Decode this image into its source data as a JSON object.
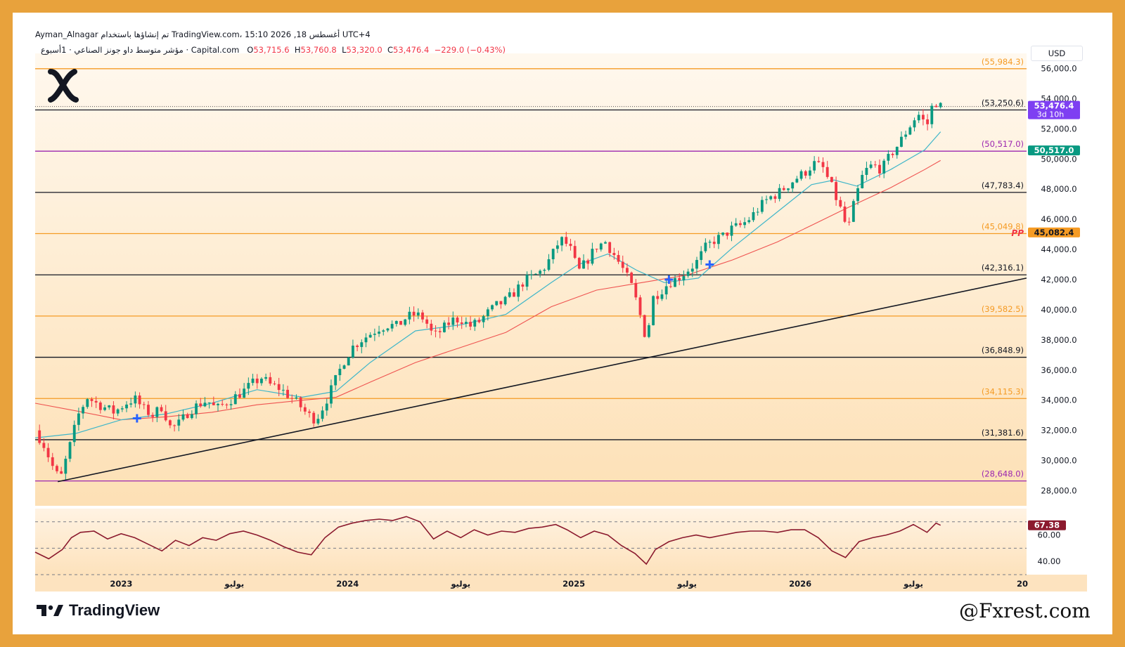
{
  "header": {
    "line1": "Ayman_Alnagar تم إنشاؤها باستخدام TradingView.com، 15:10 2026 ,18 أغسطس UTC+4",
    "symbol": "مؤشر متوسط داو جونز الصناعي · 1أسبوع · Capital.com",
    "ohlc": {
      "o_label": "O",
      "o": "53,715.6",
      "h_label": "H",
      "h": "53,760.8",
      "l_label": "L",
      "l": "53,320.0",
      "c_label": "C",
      "c": "53,476.4",
      "change": "−229.0 (−0.43%)"
    }
  },
  "currency": "USD",
  "branding": {
    "tradingview": "TradingView",
    "watermark": "@Fxrest.com",
    "logo_icon": "x-logo-icon",
    "tv_icon": "tradingview-logo-icon"
  },
  "colors": {
    "up": "#089981",
    "down": "#f23645",
    "ema_fast": "#3fb6c9",
    "ema_slow": "#ef5350",
    "orange": "#f59b24",
    "purple": "#9c27b0",
    "black": "#131722",
    "rsi": "#8b1a2e",
    "bg_top": "#fff8ee",
    "bg_bottom": "#fde0b5"
  },
  "chart_data": {
    "type": "candlestick",
    "timeframe": "1W",
    "x_axis": {
      "labels": [
        {
          "label": "2023",
          "t": 2023.0
        },
        {
          "label": "يوليو",
          "t": 2023.5
        },
        {
          "label": "2024",
          "t": 2024.0
        },
        {
          "label": "يوليو",
          "t": 2024.5
        },
        {
          "label": "2025",
          "t": 2025.0
        },
        {
          "label": "يوليو",
          "t": 2025.5
        },
        {
          "label": "2026",
          "t": 2026.0
        },
        {
          "label": "يوليو",
          "t": 2026.5
        },
        {
          "label": "20",
          "t": 2027.0
        }
      ]
    },
    "x_range": [
      2022.62,
      2027.0
    ],
    "y_range": [
      27000,
      57000
    ],
    "y_ticks": [
      {
        "v": 56000,
        "label": "56,000.0"
      },
      {
        "v": 54000,
        "label": "54,000.0"
      },
      {
        "v": 52000,
        "label": "52,000.0"
      },
      {
        "v": 50000,
        "label": "50,000.0"
      },
      {
        "v": 48000,
        "label": "48,000.0"
      },
      {
        "v": 46000,
        "label": "46,000.0"
      },
      {
        "v": 44000,
        "label": "44,000.0"
      },
      {
        "v": 42000,
        "label": "42,000.0"
      },
      {
        "v": 40000,
        "label": "40,000.0"
      },
      {
        "v": 38000,
        "label": "38,000.0"
      },
      {
        "v": 36000,
        "label": "36,000.0"
      },
      {
        "v": 34000,
        "label": "34,000.0"
      },
      {
        "v": 32000,
        "label": "32,000.0"
      },
      {
        "v": 30000,
        "label": "30,000.0"
      },
      {
        "v": 28000,
        "label": "28,000.0"
      }
    ],
    "levels": [
      {
        "v": 55984.3,
        "label": "(55,984.3)",
        "color": "orange"
      },
      {
        "v": 53250.6,
        "label": "(53,250.6)",
        "color": "black"
      },
      {
        "v": 50517.0,
        "label": "(50,517.0)",
        "color": "purple"
      },
      {
        "v": 47783.4,
        "label": "(47,783.4)",
        "color": "black"
      },
      {
        "v": 45049.8,
        "label": "(45,049.8)",
        "color": "orange"
      },
      {
        "v": 42316.1,
        "label": "(42,316.1)",
        "color": "black"
      },
      {
        "v": 39582.5,
        "label": "(39,582.5)",
        "color": "orange"
      },
      {
        "v": 36848.9,
        "label": "(36,848.9)",
        "color": "black"
      },
      {
        "v": 34115.3,
        "label": "(34,115.3)",
        "color": "orange"
      },
      {
        "v": 31381.6,
        "label": "(31,381.6)",
        "color": "black"
      },
      {
        "v": 28648.0,
        "label": "(28,648.0)",
        "color": "purple"
      }
    ],
    "price_tags": [
      {
        "v": 53476.4,
        "label": "53,476.4",
        "sub": "3d 10h",
        "bg": "#7e3ff2"
      },
      {
        "v": 50517.0,
        "label": "50,517.0",
        "bg": "#089981"
      },
      {
        "v": 45082.4,
        "label": "45,082.4",
        "bg": "#f59b24",
        "text": "#131722"
      }
    ],
    "pp_label": "PP",
    "trendline": {
      "from": {
        "t": 2022.72,
        "v": 28600
      },
      "to": {
        "t": 2027.0,
        "v": 42100
      }
    },
    "close_path": [
      [
        2022.62,
        32000
      ],
      [
        2022.66,
        31000
      ],
      [
        2022.7,
        29500
      ],
      [
        2022.73,
        28700
      ],
      [
        2022.77,
        30800
      ],
      [
        2022.81,
        33000
      ],
      [
        2022.85,
        34200
      ],
      [
        2022.89,
        33800
      ],
      [
        2022.93,
        33500
      ],
      [
        2022.97,
        33200
      ],
      [
        2023.02,
        33800
      ],
      [
        2023.06,
        34100
      ],
      [
        2023.1,
        33400
      ],
      [
        2023.14,
        33000
      ],
      [
        2023.18,
        33600
      ],
      [
        2023.22,
        32100
      ],
      [
        2023.26,
        32500
      ],
      [
        2023.3,
        33300
      ],
      [
        2023.34,
        33700
      ],
      [
        2023.38,
        34000
      ],
      [
        2023.42,
        33400
      ],
      [
        2023.46,
        33800
      ],
      [
        2023.5,
        34200
      ],
      [
        2023.54,
        34600
      ],
      [
        2023.58,
        35100
      ],
      [
        2023.62,
        35500
      ],
      [
        2023.66,
        35000
      ],
      [
        2023.7,
        34800
      ],
      [
        2023.74,
        34300
      ],
      [
        2023.78,
        33800
      ],
      [
        2023.82,
        33100
      ],
      [
        2023.86,
        32700
      ],
      [
        2023.9,
        33800
      ],
      [
        2023.94,
        35100
      ],
      [
        2023.98,
        36500
      ],
      [
        2024.02,
        37500
      ],
      [
        2024.06,
        38000
      ],
      [
        2024.1,
        38400
      ],
      [
        2024.14,
        38800
      ],
      [
        2024.18,
        39000
      ],
      [
        2024.22,
        38900
      ],
      [
        2024.26,
        39500
      ],
      [
        2024.3,
        39700
      ],
      [
        2024.34,
        39400
      ],
      [
        2024.38,
        38200
      ],
      [
        2024.42,
        38700
      ],
      [
        2024.46,
        39300
      ],
      [
        2024.5,
        39400
      ],
      [
        2024.54,
        38900
      ],
      [
        2024.58,
        39200
      ],
      [
        2024.62,
        39800
      ],
      [
        2024.66,
        40300
      ],
      [
        2024.7,
        40600
      ],
      [
        2024.74,
        41200
      ],
      [
        2024.78,
        41900
      ],
      [
        2024.82,
        42200
      ],
      [
        2024.86,
        42600
      ],
      [
        2024.9,
        43500
      ],
      [
        2024.94,
        44700
      ],
      [
        2024.98,
        44200
      ],
      [
        2025.02,
        42500
      ],
      [
        2025.06,
        43300
      ],
      [
        2025.1,
        44200
      ],
      [
        2025.14,
        44500
      ],
      [
        2025.18,
        43600
      ],
      [
        2025.22,
        42600
      ],
      [
        2025.26,
        41400
      ],
      [
        2025.29,
        39800
      ],
      [
        2025.32,
        38000
      ],
      [
        2025.35,
        40800
      ],
      [
        2025.38,
        41200
      ],
      [
        2025.42,
        41800
      ],
      [
        2025.46,
        42100
      ],
      [
        2025.5,
        42600
      ],
      [
        2025.54,
        43100
      ],
      [
        2025.58,
        44100
      ],
      [
        2025.62,
        44600
      ],
      [
        2025.66,
        44900
      ],
      [
        2025.7,
        45400
      ],
      [
        2025.74,
        45600
      ],
      [
        2025.78,
        46100
      ],
      [
        2025.82,
        46800
      ],
      [
        2025.86,
        47400
      ],
      [
        2025.9,
        47700
      ],
      [
        2025.94,
        48200
      ],
      [
        2025.98,
        48700
      ],
      [
        2026.02,
        49100
      ],
      [
        2026.06,
        49700
      ],
      [
        2026.1,
        49400
      ],
      [
        2026.14,
        48100
      ],
      [
        2026.18,
        46600
      ],
      [
        2026.21,
        45200
      ],
      [
        2026.24,
        47200
      ],
      [
        2026.28,
        49100
      ],
      [
        2026.32,
        49600
      ],
      [
        2026.36,
        49300
      ],
      [
        2026.4,
        50300
      ],
      [
        2026.44,
        51100
      ],
      [
        2026.48,
        52100
      ],
      [
        2026.52,
        53000
      ],
      [
        2026.56,
        52200
      ],
      [
        2026.59,
        53900
      ],
      [
        2026.62,
        53476
      ]
    ],
    "ema_fast": [
      [
        2022.62,
        31500
      ],
      [
        2022.8,
        31800
      ],
      [
        2023.0,
        32700
      ],
      [
        2023.2,
        33100
      ],
      [
        2023.4,
        33800
      ],
      [
        2023.6,
        34700
      ],
      [
        2023.8,
        34200
      ],
      [
        2023.95,
        34600
      ],
      [
        2024.1,
        36500
      ],
      [
        2024.3,
        38600
      ],
      [
        2024.5,
        39000
      ],
      [
        2024.7,
        39700
      ],
      [
        2024.9,
        41800
      ],
      [
        2025.02,
        43000
      ],
      [
        2025.15,
        43700
      ],
      [
        2025.28,
        42600
      ],
      [
        2025.4,
        41800
      ],
      [
        2025.55,
        42100
      ],
      [
        2025.7,
        44100
      ],
      [
        2025.9,
        46500
      ],
      [
        2026.05,
        48300
      ],
      [
        2026.15,
        48600
      ],
      [
        2026.25,
        48200
      ],
      [
        2026.4,
        49300
      ],
      [
        2026.55,
        50600
      ],
      [
        2026.62,
        51800
      ]
    ],
    "ema_slow": [
      [
        2022.62,
        33800
      ],
      [
        2022.8,
        33300
      ],
      [
        2023.0,
        32700
      ],
      [
        2023.2,
        32900
      ],
      [
        2023.4,
        33200
      ],
      [
        2023.6,
        33700
      ],
      [
        2023.8,
        34000
      ],
      [
        2023.95,
        34200
      ],
      [
        2024.1,
        35200
      ],
      [
        2024.3,
        36500
      ],
      [
        2024.5,
        37500
      ],
      [
        2024.7,
        38500
      ],
      [
        2024.9,
        40200
      ],
      [
        2025.1,
        41300
      ],
      [
        2025.3,
        41800
      ],
      [
        2025.5,
        42300
      ],
      [
        2025.7,
        43300
      ],
      [
        2025.9,
        44500
      ],
      [
        2026.05,
        45600
      ],
      [
        2026.2,
        46700
      ],
      [
        2026.4,
        48100
      ],
      [
        2026.55,
        49300
      ],
      [
        2026.62,
        49900
      ]
    ],
    "signals": [
      {
        "t": 2023.07,
        "v": 32800
      },
      {
        "t": 2025.42,
        "v": 42000
      },
      {
        "t": 2025.6,
        "v": 43000
      }
    ],
    "rsi": {
      "current": "67.38",
      "ticks": [
        {
          "v": 60,
          "label": "60.00"
        },
        {
          "v": 40,
          "label": "40.00"
        }
      ],
      "y_range": [
        30,
        80
      ],
      "bands": [
        70,
        50,
        30
      ],
      "path": [
        [
          2022.62,
          47
        ],
        [
          2022.68,
          42
        ],
        [
          2022.74,
          49
        ],
        [
          2022.78,
          58
        ],
        [
          2022.82,
          62
        ],
        [
          2022.88,
          63
        ],
        [
          2022.94,
          57
        ],
        [
          2023.0,
          61
        ],
        [
          2023.06,
          58
        ],
        [
          2023.12,
          53
        ],
        [
          2023.18,
          48
        ],
        [
          2023.24,
          56
        ],
        [
          2023.3,
          52
        ],
        [
          2023.36,
          58
        ],
        [
          2023.42,
          56
        ],
        [
          2023.48,
          61
        ],
        [
          2023.54,
          63
        ],
        [
          2023.6,
          60
        ],
        [
          2023.66,
          56
        ],
        [
          2023.72,
          51
        ],
        [
          2023.78,
          47
        ],
        [
          2023.84,
          45
        ],
        [
          2023.9,
          58
        ],
        [
          2023.96,
          66
        ],
        [
          2024.02,
          69
        ],
        [
          2024.08,
          71
        ],
        [
          2024.14,
          72
        ],
        [
          2024.2,
          71
        ],
        [
          2024.26,
          74
        ],
        [
          2024.32,
          70
        ],
        [
          2024.38,
          57
        ],
        [
          2024.44,
          63
        ],
        [
          2024.5,
          58
        ],
        [
          2024.56,
          64
        ],
        [
          2024.62,
          60
        ],
        [
          2024.68,
          63
        ],
        [
          2024.74,
          62
        ],
        [
          2024.8,
          65
        ],
        [
          2024.86,
          66
        ],
        [
          2024.92,
          68
        ],
        [
          2024.97,
          64
        ],
        [
          2025.03,
          58
        ],
        [
          2025.09,
          63
        ],
        [
          2025.15,
          60
        ],
        [
          2025.21,
          52
        ],
        [
          2025.27,
          46
        ],
        [
          2025.32,
          38
        ],
        [
          2025.36,
          49
        ],
        [
          2025.42,
          55
        ],
        [
          2025.48,
          58
        ],
        [
          2025.54,
          60
        ],
        [
          2025.6,
          58
        ],
        [
          2025.66,
          60
        ],
        [
          2025.72,
          62
        ],
        [
          2025.78,
          63
        ],
        [
          2025.84,
          63
        ],
        [
          2025.9,
          62
        ],
        [
          2025.96,
          64
        ],
        [
          2026.02,
          64
        ],
        [
          2026.08,
          58
        ],
        [
          2026.14,
          48
        ],
        [
          2026.2,
          43
        ],
        [
          2026.26,
          55
        ],
        [
          2026.32,
          58
        ],
        [
          2026.38,
          60
        ],
        [
          2026.44,
          63
        ],
        [
          2026.5,
          68
        ],
        [
          2026.56,
          62
        ],
        [
          2026.6,
          69
        ],
        [
          2026.62,
          67.38
        ]
      ]
    }
  }
}
